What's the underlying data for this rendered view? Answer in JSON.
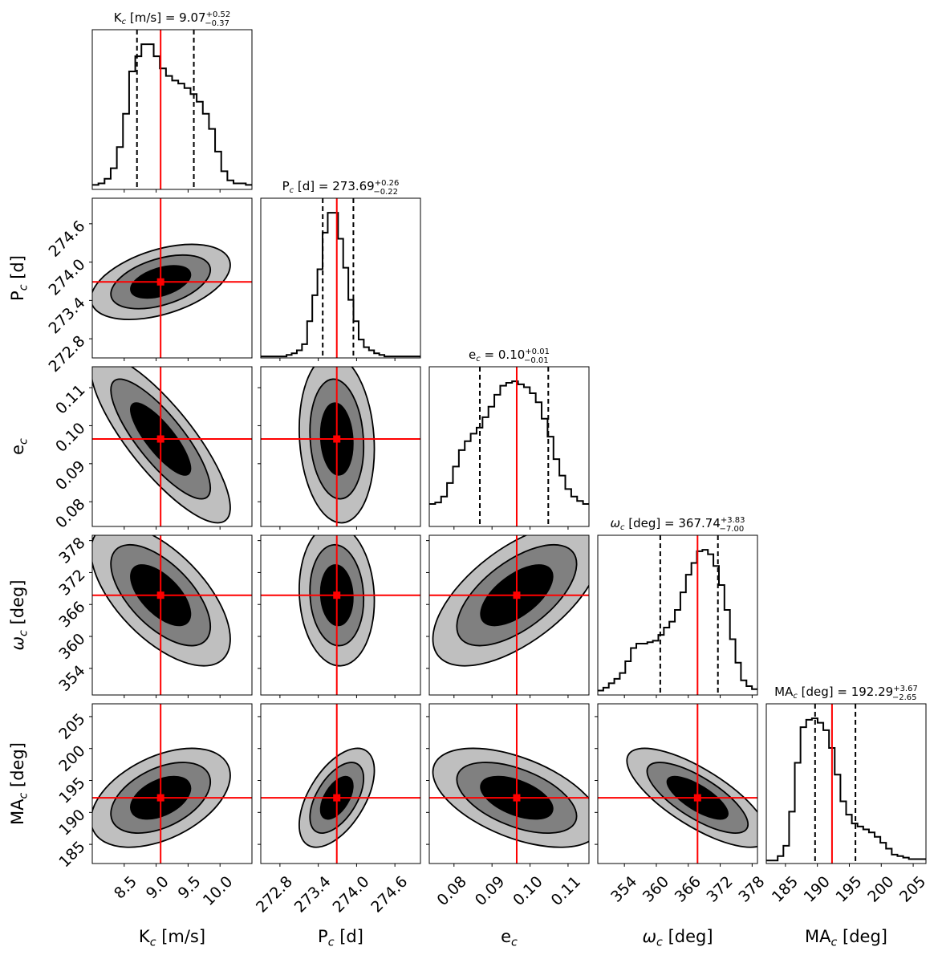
{
  "chart_data": {
    "type": "corner",
    "parameters": [
      {
        "key": "K",
        "sym": "K",
        "unit": "[m/s]",
        "range": [
          8.0,
          10.5
        ],
        "ticks": [
          8.5,
          9.0,
          9.5,
          10.0
        ],
        "tick_labels": [
          "8.5",
          "9.0",
          "9.5",
          "10.0"
        ],
        "median": 9.07,
        "plus": "0.52",
        "minus": "0.37",
        "value_text": "9.07",
        "q_low": 8.7,
        "q_high": 9.59,
        "hist_counts": [
          3,
          4,
          7,
          14,
          28,
          50,
          78,
          88,
          96,
          96,
          88,
          80,
          75,
          72,
          70,
          67,
          63,
          58,
          50,
          40,
          25,
          12,
          6,
          4,
          4,
          3
        ]
      },
      {
        "key": "P",
        "sym": "P",
        "unit": "[d]",
        "range": [
          272.5,
          275.0
        ],
        "ticks": [
          272.8,
          273.4,
          274.0,
          274.6
        ],
        "tick_labels": [
          "272.8",
          "273.4",
          "274.0",
          "274.6"
        ],
        "median": 273.69,
        "plus": "0.26",
        "minus": "0.22",
        "value_text": "273.69",
        "q_low": 273.47,
        "q_high": 273.95,
        "hist_counts": [
          1,
          1,
          1,
          1,
          1,
          2,
          3,
          5,
          9,
          24,
          41,
          58,
          82,
          95,
          95,
          78,
          59,
          38,
          24,
          12,
          7,
          5,
          3,
          2,
          1,
          1,
          1,
          1,
          1,
          1,
          1
        ]
      },
      {
        "key": "e",
        "sym": "e",
        "unit": "",
        "range": [
          0.0735,
          0.1155
        ],
        "ticks": [
          0.08,
          0.09,
          0.1,
          0.11
        ],
        "tick_labels": [
          "0.08",
          "0.09",
          "0.10",
          "0.11"
        ],
        "median": 0.0965,
        "plus": "0.01",
        "minus": "0.01",
        "value_text": "0.10",
        "q_low": 0.0868,
        "q_high": 0.1048,
        "hist_counts": [
          15,
          16,
          20,
          29,
          40,
          51,
          57,
          62,
          66,
          73,
          80,
          88,
          94,
          96,
          97,
          95,
          93,
          89,
          83,
          72,
          60,
          45,
          34,
          25,
          20,
          17,
          15
        ]
      },
      {
        "key": "w",
        "sym": "ω",
        "unit": "[deg]",
        "range": [
          349.0,
          379.0
        ],
        "ticks": [
          354,
          360,
          366,
          372,
          378
        ],
        "tick_labels": [
          "354",
          "360",
          "366",
          "372",
          "378"
        ],
        "median": 367.74,
        "plus": "3.83",
        "minus": "7.00",
        "value_text": "367.74",
        "q_low": 360.74,
        "q_high": 371.57,
        "hist_counts": [
          3,
          5,
          8,
          11,
          15,
          23,
          32,
          35,
          35,
          36,
          37,
          41,
          46,
          50,
          58,
          70,
          82,
          90,
          98,
          99,
          96,
          88,
          75,
          58,
          38,
          22,
          10,
          6,
          4
        ]
      },
      {
        "key": "MA",
        "sym": "MA",
        "unit": "[deg]",
        "range": [
          182.0,
          207.0
        ],
        "ticks": [
          185,
          190,
          195,
          200,
          205
        ],
        "tick_labels": [
          "185",
          "190",
          "195",
          "200",
          "205"
        ],
        "median": 192.29,
        "plus": "3.67",
        "minus": "2.65",
        "value_text": "192.29",
        "q_low": 189.64,
        "q_high": 195.96,
        "hist_counts": [
          2,
          2,
          5,
          12,
          35,
          68,
          92,
          97,
          98,
          95,
          90,
          78,
          60,
          42,
          33,
          27,
          25,
          23,
          21,
          18,
          14,
          10,
          6,
          5,
          4,
          3,
          3,
          3
        ]
      }
    ],
    "pair_correlations": {
      "P|K": 0.45,
      "e|K": -0.82,
      "e|P": -0.12,
      "w|K": -0.62,
      "w|P": -0.08,
      "w|e": 0.62,
      "MA|K": 0.45,
      "MA|P": 0.55,
      "MA|e": -0.52,
      "MA|w": -0.75
    },
    "contour_levels": [
      "1-sigma",
      "2-sigma",
      "3-sigma"
    ],
    "contour_colors": [
      "#000000",
      "#808080",
      "#bfbfbf"
    ],
    "truth_color": "#ff0000",
    "quantile_style": "dashed black",
    "hist_color": "#000000"
  }
}
